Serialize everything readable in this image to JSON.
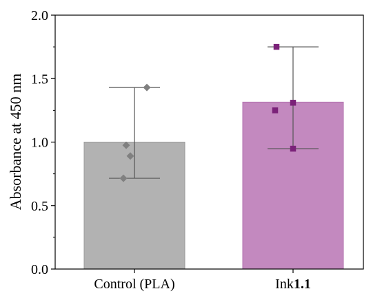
{
  "chart_data": {
    "type": "bar",
    "ylabel": "Absorbance at 450 nm",
    "ylim": [
      0.0,
      2.0
    ],
    "yticks": [
      "0.0",
      "0.5",
      "1.0",
      "1.5",
      "2.0"
    ],
    "ytick_values": [
      0.0,
      0.5,
      1.0,
      1.5,
      2.0
    ],
    "grid": false,
    "categories": [
      {
        "prefix": "Control (PLA)",
        "bold": ""
      },
      {
        "prefix": "Ink",
        "bold": "1.1"
      }
    ],
    "values": [
      1.0,
      1.315
    ],
    "error_low": [
      0.715,
      0.948
    ],
    "error_high": [
      1.43,
      1.75
    ],
    "points": [
      [
        1.43,
        0.975,
        0.89,
        0.715
      ],
      [
        1.75,
        1.31,
        1.25,
        0.948
      ]
    ],
    "bar_colors": [
      "#b2b2b2",
      "#c389bf"
    ],
    "bar_edge_colors": [
      "#9a9a9a",
      "#b16fae"
    ],
    "point_colors": [
      "#808080",
      "#7b2279"
    ],
    "point_markers": [
      "diamond",
      "square"
    ],
    "error_color": "#555555"
  }
}
